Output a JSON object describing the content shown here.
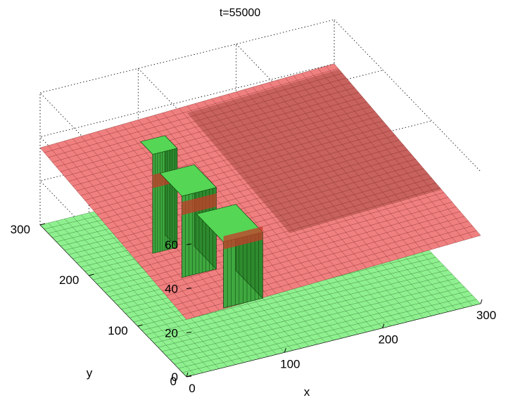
{
  "title": "t=55000",
  "chart_data": {
    "type": "surface3d",
    "title": "t=55000",
    "xlabel": "x",
    "ylabel": "y",
    "zlabel": "",
    "xlim": [
      0,
      300
    ],
    "ylim": [
      0,
      300
    ],
    "zlim": [
      0,
      60
    ],
    "x_ticks": [
      "0",
      "100",
      "200",
      "300"
    ],
    "y_ticks": [
      "0",
      "100",
      "200",
      "300"
    ],
    "z_ticks": [
      "0",
      "20",
      "40",
      "60"
    ],
    "grid": true,
    "surfaces": [
      {
        "role": "upper",
        "color": "#f08080",
        "edge_color": "#7a2020",
        "shape": "tilted plane",
        "z_at_corners": {
          "x0_y0": 26,
          "x300_y0": 31,
          "x0_y300": 35,
          "x300_y300": 40
        }
      },
      {
        "role": "lower",
        "color": "#8ff08f",
        "edge_color": "#1f5f1f",
        "shape": "flat plane with raised columns",
        "base_z": 0,
        "columns": [
          {
            "x_range": [
              70,
              95
            ],
            "y_range": [
              210,
              235
            ],
            "height": 45
          },
          {
            "x_range": [
              75,
              110
            ],
            "y_range": [
              160,
              205
            ],
            "height": 37
          },
          {
            "x_range": [
              85,
              125
            ],
            "y_range": [
              95,
              150
            ],
            "height": 30
          }
        ]
      }
    ]
  },
  "colors": {
    "red_surface": "#f08080",
    "green_surface": "#8ff08f",
    "box_lines": "#000000"
  }
}
